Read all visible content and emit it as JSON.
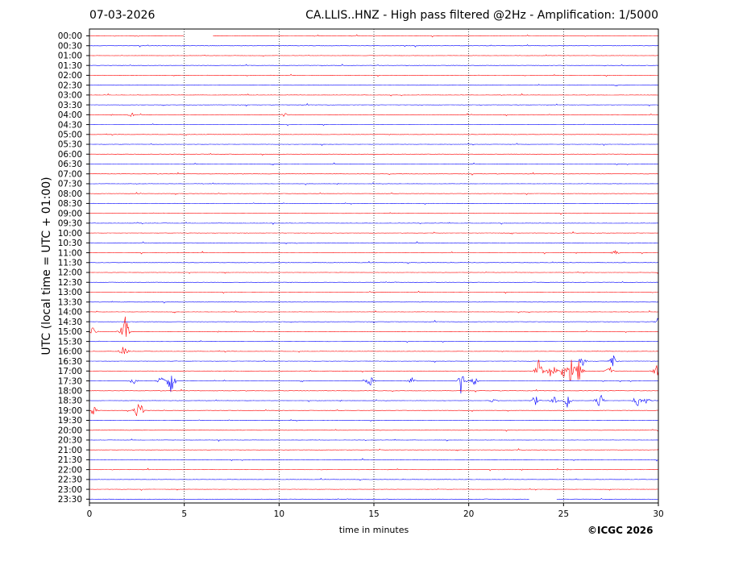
{
  "header": {
    "date": "07-03-2026",
    "title": "CA.LLIS..HNZ - High pass filtered @2Hz - Amplification: 1/5000"
  },
  "footer": {
    "copyright": "©ICGC 2026"
  },
  "chart_data": {
    "type": "line",
    "title": "CA.LLIS..HNZ - High pass filtered @2Hz - Amplification: 1/5000",
    "xlabel": "time in minutes",
    "ylabel": "UTC (local time = UTC + 01:00)",
    "xlim": [
      0,
      30
    ],
    "xticks": [
      0,
      5,
      10,
      15,
      20,
      25,
      30
    ],
    "vertical_gridlines_at": [
      5,
      10,
      15,
      20,
      25
    ],
    "row_labels": [
      "00:00",
      "00:30",
      "01:00",
      "01:30",
      "02:00",
      "02:30",
      "03:00",
      "03:30",
      "04:00",
      "04:30",
      "05:00",
      "05:30",
      "06:00",
      "06:30",
      "07:00",
      "07:30",
      "08:00",
      "08:30",
      "09:00",
      "09:30",
      "10:00",
      "10:30",
      "11:00",
      "11:30",
      "12:00",
      "12:30",
      "13:00",
      "13:30",
      "14:00",
      "14:30",
      "15:00",
      "15:30",
      "16:00",
      "16:30",
      "17:00",
      "17:30",
      "18:00",
      "18:30",
      "19:00",
      "19:30",
      "20:00",
      "20:30",
      "21:00",
      "21:30",
      "22:00",
      "22:30",
      "23:00",
      "23:30"
    ],
    "trace_colors": [
      "#ff0000",
      "#0000ff"
    ],
    "gaps": [
      {
        "row": "00:00",
        "from": 5.0,
        "to": 6.5
      },
      {
        "row": "23:30",
        "from": 23.2,
        "to": 24.6
      }
    ],
    "events": [
      {
        "row": "04:00",
        "t": 2.2,
        "amp": 0.3
      },
      {
        "row": "04:00",
        "t": 10.3,
        "amp": 0.3
      },
      {
        "row": "11:00",
        "t": 27.7,
        "amp": 0.4
      },
      {
        "row": "14:30",
        "t": 30.0,
        "amp": 0.5
      },
      {
        "row": "15:00",
        "t": 0.2,
        "amp": 0.6
      },
      {
        "row": "15:00",
        "t": 1.7,
        "amp": 0.8
      },
      {
        "row": "15:00",
        "t": 1.9,
        "amp": 2.2
      },
      {
        "row": "16:00",
        "t": 1.8,
        "amp": 0.8
      },
      {
        "row": "16:30",
        "t": 26.0,
        "amp": 0.5
      },
      {
        "row": "16:30",
        "t": 27.6,
        "amp": 1.0
      },
      {
        "row": "17:00",
        "t": 23.7,
        "amp": 1.6
      },
      {
        "row": "17:00",
        "t": 24.3,
        "amp": 0.8
      },
      {
        "row": "17:00",
        "t": 24.6,
        "amp": 1.0
      },
      {
        "row": "17:00",
        "t": 25.0,
        "amp": 1.2
      },
      {
        "row": "17:00",
        "t": 25.4,
        "amp": 2.0
      },
      {
        "row": "17:00",
        "t": 25.8,
        "amp": 1.4
      },
      {
        "row": "17:00",
        "t": 27.4,
        "amp": 0.8
      },
      {
        "row": "17:00",
        "t": 29.9,
        "amp": 0.8
      },
      {
        "row": "17:30",
        "t": 2.3,
        "amp": 0.5
      },
      {
        "row": "17:30",
        "t": 3.8,
        "amp": 0.8
      },
      {
        "row": "17:30",
        "t": 4.3,
        "amp": 2.2
      },
      {
        "row": "17:30",
        "t": 14.8,
        "amp": 0.9
      },
      {
        "row": "17:30",
        "t": 17.0,
        "amp": 0.4
      },
      {
        "row": "17:30",
        "t": 19.6,
        "amp": 1.6
      },
      {
        "row": "17:30",
        "t": 20.3,
        "amp": 0.6
      },
      {
        "row": "18:30",
        "t": 21.3,
        "amp": 0.4
      },
      {
        "row": "18:30",
        "t": 23.5,
        "amp": 0.8
      },
      {
        "row": "18:30",
        "t": 24.5,
        "amp": 0.6
      },
      {
        "row": "18:30",
        "t": 25.2,
        "amp": 0.8
      },
      {
        "row": "18:30",
        "t": 26.9,
        "amp": 1.4
      },
      {
        "row": "18:30",
        "t": 28.9,
        "amp": 0.7
      },
      {
        "row": "18:30",
        "t": 29.4,
        "amp": 0.5
      },
      {
        "row": "19:00",
        "t": 0.2,
        "amp": 0.6
      },
      {
        "row": "19:00",
        "t": 2.6,
        "amp": 1.8
      }
    ]
  }
}
